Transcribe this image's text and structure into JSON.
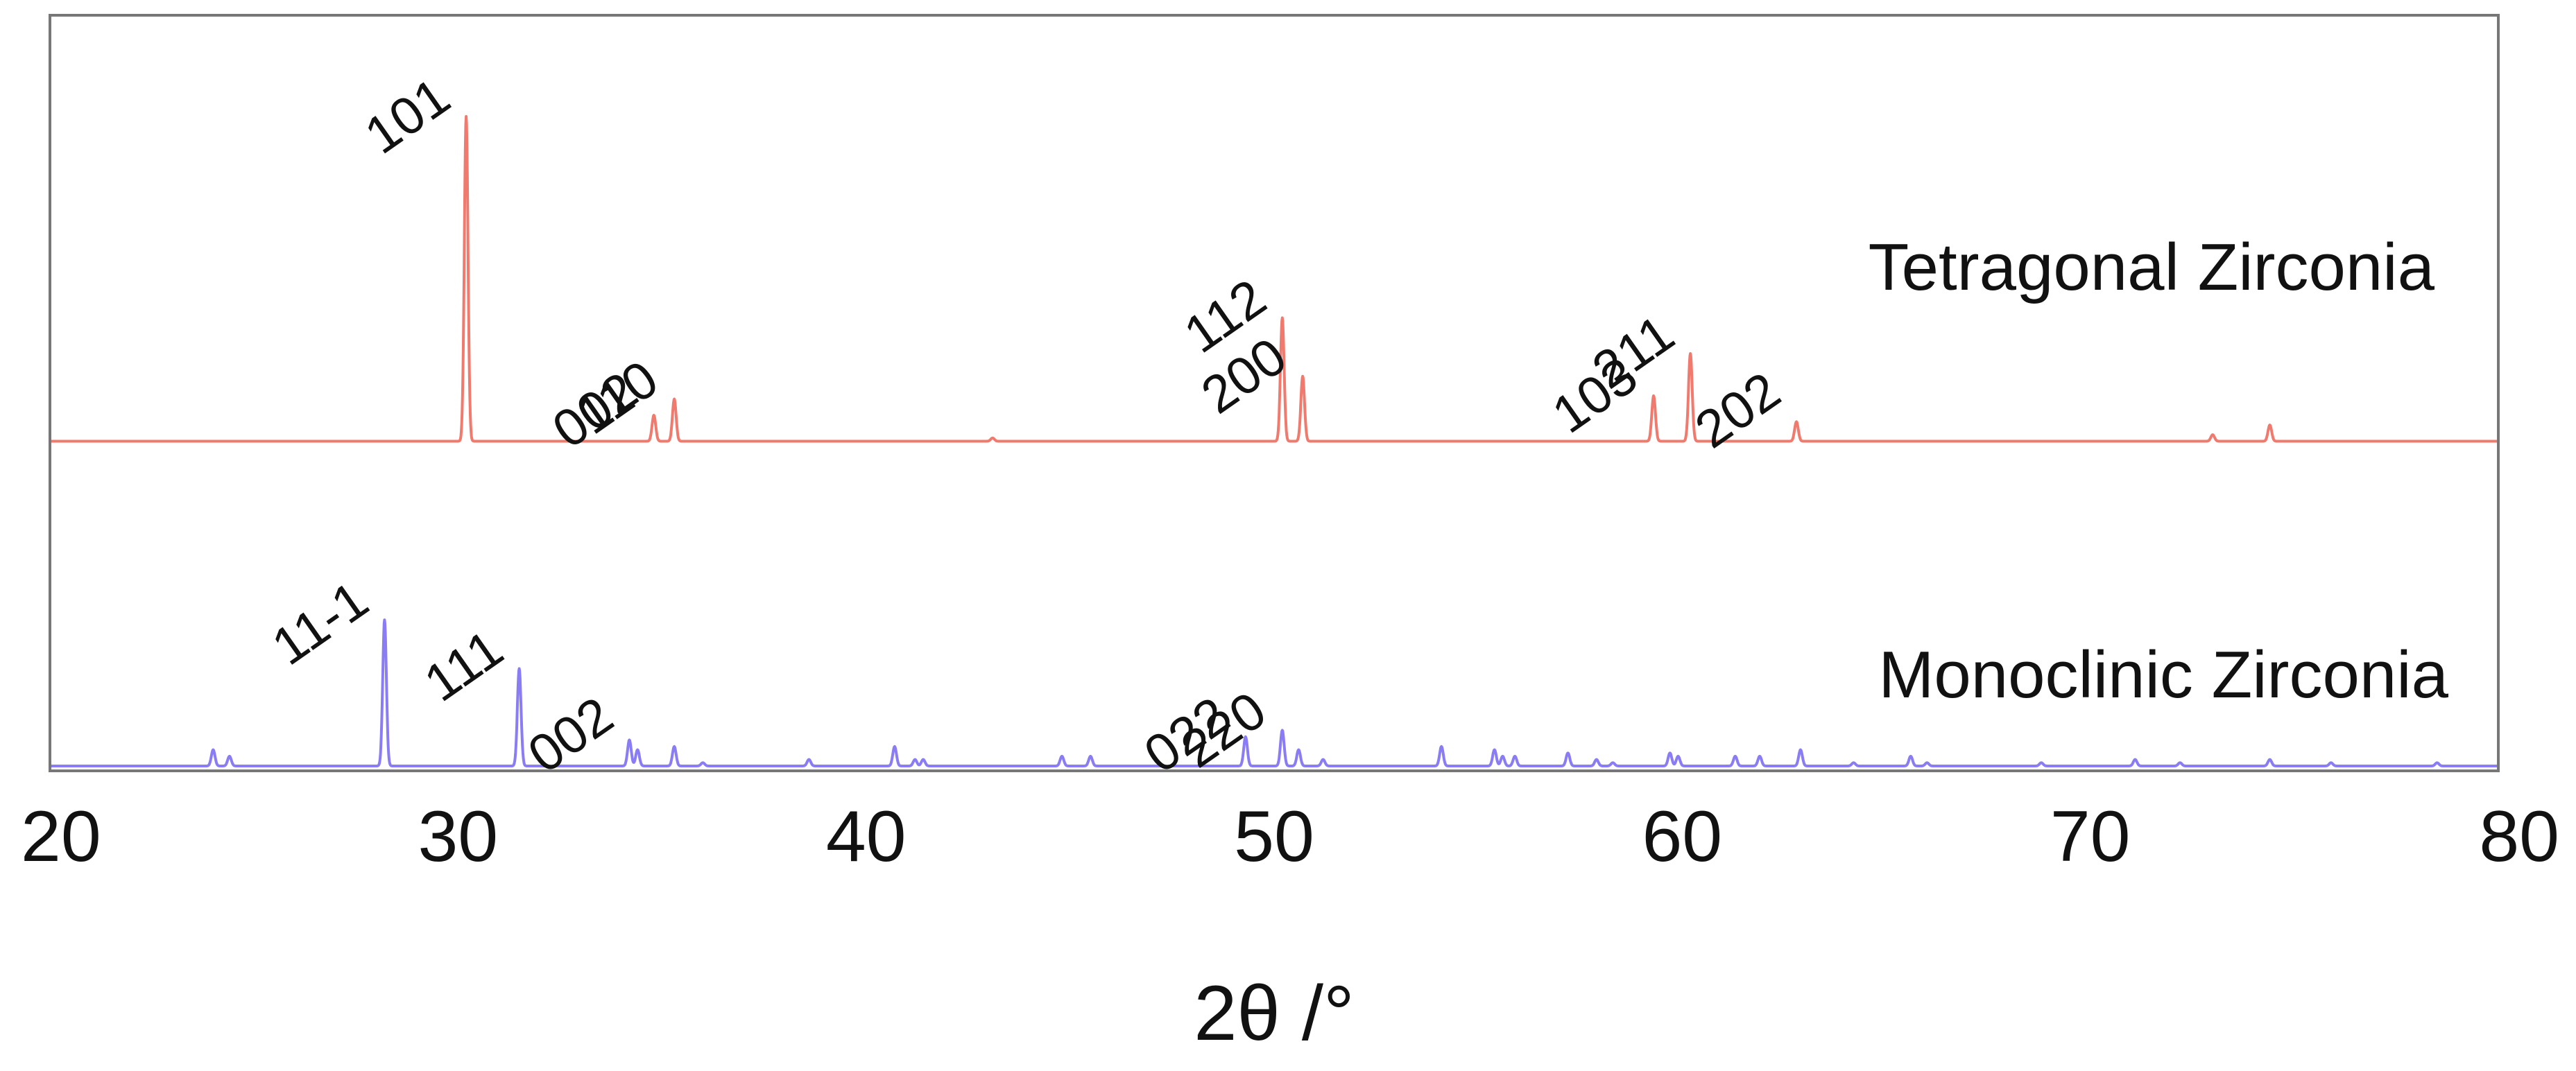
{
  "chart_data": {
    "type": "line",
    "title": "",
    "xlabel": "2θ /°",
    "ylabel": "",
    "xlim": [
      20,
      80
    ],
    "xticks": [
      "20",
      "30",
      "40",
      "50",
      "60",
      "70",
      "80"
    ],
    "grid": false,
    "legend": "none",
    "series": [
      {
        "name": "Tetragonal Zirconia",
        "color": "#f07a6e",
        "baseline": 1.0,
        "peaks": [
          {
            "x": 30.2,
            "h": 1.0,
            "hkl": "101"
          },
          {
            "x": 34.8,
            "h": 0.08,
            "hkl": "002"
          },
          {
            "x": 35.3,
            "h": 0.13,
            "hkl": "110"
          },
          {
            "x": 43.1,
            "h": 0.01,
            "hkl": ""
          },
          {
            "x": 50.2,
            "h": 0.38,
            "hkl": "112"
          },
          {
            "x": 50.7,
            "h": 0.2,
            "hkl": "200"
          },
          {
            "x": 59.3,
            "h": 0.14,
            "hkl": "103"
          },
          {
            "x": 60.2,
            "h": 0.27,
            "hkl": "211"
          },
          {
            "x": 62.8,
            "h": 0.06,
            "hkl": "202"
          },
          {
            "x": 73.0,
            "h": 0.02,
            "hkl": ""
          },
          {
            "x": 74.4,
            "h": 0.05,
            "hkl": ""
          }
        ]
      },
      {
        "name": "Monoclinic Zirconia",
        "color": "#8a7cf5",
        "baseline": 0.0,
        "peaks": [
          {
            "x": 24.0,
            "h": 0.05,
            "hkl": ""
          },
          {
            "x": 24.4,
            "h": 0.03,
            "hkl": ""
          },
          {
            "x": 28.2,
            "h": 0.45,
            "hkl": "11-1"
          },
          {
            "x": 31.5,
            "h": 0.3,
            "hkl": "111"
          },
          {
            "x": 34.2,
            "h": 0.08,
            "hkl": "002"
          },
          {
            "x": 34.4,
            "h": 0.05,
            "hkl": ""
          },
          {
            "x": 35.3,
            "h": 0.06,
            "hkl": ""
          },
          {
            "x": 36.0,
            "h": 0.01,
            "hkl": ""
          },
          {
            "x": 38.6,
            "h": 0.02,
            "hkl": ""
          },
          {
            "x": 40.7,
            "h": 0.06,
            "hkl": ""
          },
          {
            "x": 41.2,
            "h": 0.02,
            "hkl": ""
          },
          {
            "x": 41.4,
            "h": 0.02,
            "hkl": ""
          },
          {
            "x": 44.8,
            "h": 0.03,
            "hkl": ""
          },
          {
            "x": 45.5,
            "h": 0.03,
            "hkl": ""
          },
          {
            "x": 49.3,
            "h": 0.09,
            "hkl": "022"
          },
          {
            "x": 50.2,
            "h": 0.11,
            "hkl": "220"
          },
          {
            "x": 50.6,
            "h": 0.05,
            "hkl": ""
          },
          {
            "x": 51.2,
            "h": 0.02,
            "hkl": ""
          },
          {
            "x": 54.1,
            "h": 0.06,
            "hkl": ""
          },
          {
            "x": 55.4,
            "h": 0.05,
            "hkl": ""
          },
          {
            "x": 55.6,
            "h": 0.03,
            "hkl": ""
          },
          {
            "x": 55.9,
            "h": 0.03,
            "hkl": ""
          },
          {
            "x": 57.2,
            "h": 0.04,
            "hkl": ""
          },
          {
            "x": 57.9,
            "h": 0.02,
            "hkl": ""
          },
          {
            "x": 58.3,
            "h": 0.01,
            "hkl": ""
          },
          {
            "x": 59.7,
            "h": 0.04,
            "hkl": ""
          },
          {
            "x": 59.9,
            "h": 0.03,
            "hkl": ""
          },
          {
            "x": 61.3,
            "h": 0.03,
            "hkl": ""
          },
          {
            "x": 61.9,
            "h": 0.03,
            "hkl": ""
          },
          {
            "x": 62.9,
            "h": 0.05,
            "hkl": ""
          },
          {
            "x": 64.2,
            "h": 0.01,
            "hkl": ""
          },
          {
            "x": 65.6,
            "h": 0.03,
            "hkl": ""
          },
          {
            "x": 66.0,
            "h": 0.01,
            "hkl": ""
          },
          {
            "x": 68.8,
            "h": 0.01,
            "hkl": ""
          },
          {
            "x": 71.1,
            "h": 0.02,
            "hkl": ""
          },
          {
            "x": 72.2,
            "h": 0.01,
            "hkl": ""
          },
          {
            "x": 74.4,
            "h": 0.02,
            "hkl": ""
          },
          {
            "x": 75.9,
            "h": 0.01,
            "hkl": ""
          },
          {
            "x": 78.5,
            "h": 0.01,
            "hkl": ""
          }
        ]
      }
    ]
  }
}
